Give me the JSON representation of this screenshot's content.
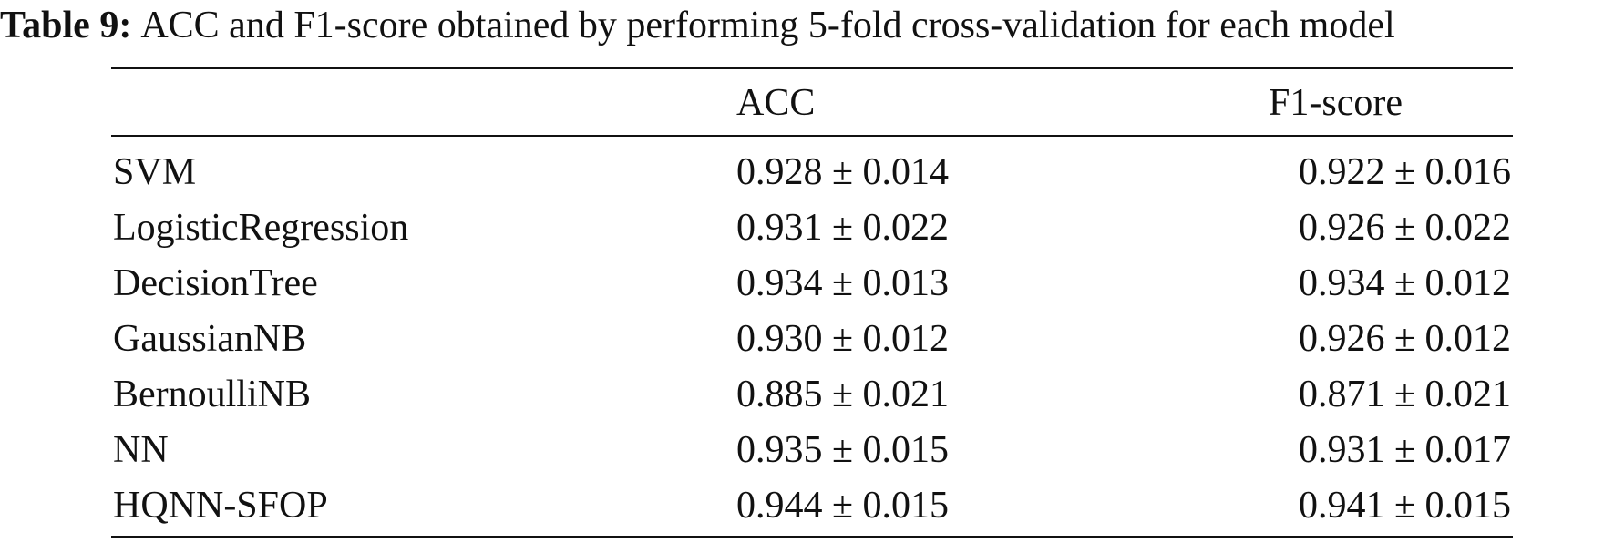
{
  "caption": {
    "label": "Table 9:",
    "text": "ACC and F1-score obtained by performing 5-fold cross-validation for each model"
  },
  "table": {
    "header": [
      "ACC",
      "F1-score"
    ],
    "rows": [
      [
        "SVM",
        "0.928 ± 0.014",
        "0.922 ± 0.016"
      ],
      [
        "LogisticRegression",
        "0.931 ± 0.022",
        "0.926 ± 0.022"
      ],
      [
        "DecisionTree",
        "0.934 ± 0.013",
        "0.934 ± 0.012"
      ],
      [
        "GaussianNB",
        "0.930 ± 0.012",
        "0.926 ± 0.012"
      ],
      [
        "BernoulliNB",
        "0.885 ± 0.021",
        "0.871 ± 0.021"
      ],
      [
        "NN",
        "0.935 ± 0.015",
        "0.931 ± 0.017"
      ],
      [
        "HQNN-SFOP",
        "0.944 ± 0.015",
        "0.941 ± 0.015"
      ]
    ]
  }
}
